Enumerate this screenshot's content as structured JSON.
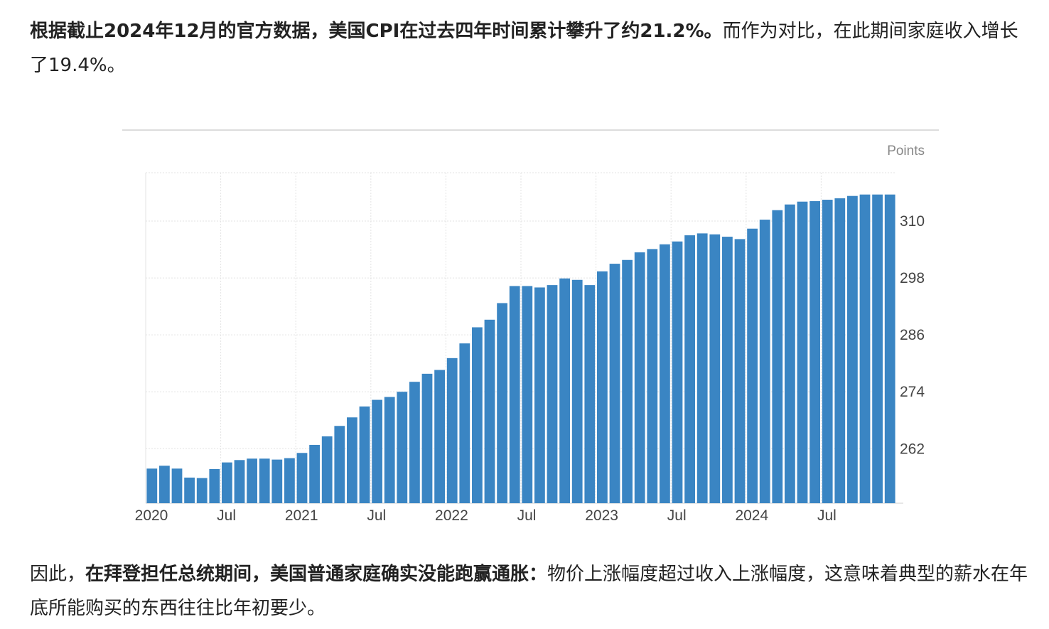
{
  "article": {
    "para1": {
      "bold": "根据截止2024年12月的官方数据，美国CPI在过去四年时间累计攀升了约21.2%。",
      "rest": "而作为对比，在此期间家庭收入增长了19.4%。"
    },
    "para2": {
      "lead": "因此，",
      "bold": "在拜登担任总统期间，美国普通家庭确实没能跑赢通胀：",
      "rest": "物价上涨幅度超过收入上涨幅度，这意味着典型的薪水在年底所能购买的东西往往比年初要少。"
    }
  },
  "colors": {
    "bar": "#3a85c3",
    "grid": "#e3e3e3",
    "axis_text": "#444444",
    "unit_text": "#888888",
    "text": "#222222"
  },
  "chart_data": {
    "type": "bar",
    "unit_label": "Points",
    "y_ticks": [
      262,
      274,
      286,
      298,
      310
    ],
    "ylim": [
      250.5,
      320.2
    ],
    "x_tick_labels": [
      "2020",
      "Jul",
      "2021",
      "Jul",
      "2022",
      "Jul",
      "2023",
      "Jul",
      "2024",
      "Jul"
    ],
    "x_tick_month_index": [
      0,
      6,
      12,
      18,
      24,
      30,
      36,
      42,
      48,
      54
    ],
    "categories": [
      "2020-01",
      "2020-02",
      "2020-03",
      "2020-04",
      "2020-05",
      "2020-06",
      "2020-07",
      "2020-08",
      "2020-09",
      "2020-10",
      "2020-11",
      "2020-12",
      "2021-01",
      "2021-02",
      "2021-03",
      "2021-04",
      "2021-05",
      "2021-06",
      "2021-07",
      "2021-08",
      "2021-09",
      "2021-10",
      "2021-11",
      "2021-12",
      "2022-01",
      "2022-02",
      "2022-03",
      "2022-04",
      "2022-05",
      "2022-06",
      "2022-07",
      "2022-08",
      "2022-09",
      "2022-10",
      "2022-11",
      "2022-12",
      "2023-01",
      "2023-02",
      "2023-03",
      "2023-04",
      "2023-05",
      "2023-06",
      "2023-07",
      "2023-08",
      "2023-09",
      "2023-10",
      "2023-11",
      "2023-12",
      "2024-01",
      "2024-02",
      "2024-03",
      "2024-04",
      "2024-05",
      "2024-06",
      "2024-07",
      "2024-08",
      "2024-09",
      "2024-10",
      "2024-11",
      "2024-12"
    ],
    "values": [
      257.8,
      258.4,
      257.8,
      255.9,
      255.8,
      257.7,
      259.1,
      259.6,
      259.9,
      259.9,
      259.7,
      260.0,
      261.1,
      262.8,
      264.6,
      266.8,
      268.6,
      270.9,
      272.3,
      272.9,
      274.0,
      276.1,
      277.8,
      278.6,
      281.1,
      284.2,
      287.6,
      289.2,
      292.7,
      296.3,
      296.3,
      296.0,
      296.5,
      297.9,
      297.6,
      296.5,
      299.4,
      301.0,
      301.8,
      303.4,
      304.1,
      305.1,
      305.7,
      307.0,
      307.4,
      307.2,
      306.7,
      306.2,
      308.4,
      310.3,
      312.3,
      313.5,
      314.1,
      314.2,
      314.5,
      314.8,
      315.3,
      315.6,
      315.6,
      315.6
    ]
  }
}
